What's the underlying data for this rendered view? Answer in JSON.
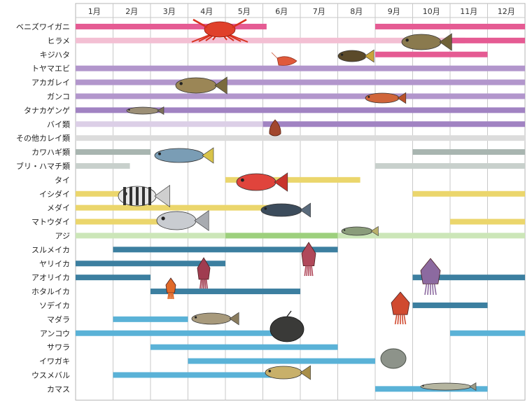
{
  "months": [
    "1月",
    "2月",
    "3月",
    "4月",
    "5月",
    "6月",
    "7月",
    "8月",
    "9月",
    "10月",
    "11月",
    "12月"
  ],
  "colors": {
    "pink": "#e55b93",
    "pink_light": "#f3bfd3",
    "purple": "#b296cc",
    "purple_dark": "#a183c2",
    "purple_light": "#dccfe7",
    "gray_pale": "#dcdcdc",
    "gray_green": "#a8b5b0",
    "gray_green_light": "#c8d0cc",
    "yellow": "#ebd66c",
    "green_light": "#cce6b8",
    "green": "#9dd07d",
    "teal_dark": "#3c7fa0",
    "sky": "#5ab2d7"
  },
  "species": [
    {
      "name": "ベニズワイガニ",
      "bars": [
        {
          "from": 1,
          "to": 5.1,
          "color": "pink"
        },
        {
          "from": 9,
          "to": 12,
          "color": "pink"
        }
      ]
    },
    {
      "name": "ヒラメ",
      "bars": [
        {
          "from": 1,
          "to": 10.4,
          "color": "pink_light"
        },
        {
          "from": 11,
          "to": 12,
          "color": "pink"
        }
      ]
    },
    {
      "name": "キジハタ",
      "bars": [
        {
          "from": 9,
          "to": 11,
          "color": "pink"
        }
      ]
    },
    {
      "name": "トヤマエビ",
      "bars": [
        {
          "from": 1,
          "to": 12,
          "color": "purple"
        }
      ]
    },
    {
      "name": "アカガレイ",
      "bars": [
        {
          "from": 1,
          "to": 12,
          "color": "purple"
        }
      ]
    },
    {
      "name": "ガンコ",
      "bars": [
        {
          "from": 1,
          "to": 12,
          "color": "purple"
        }
      ]
    },
    {
      "name": "タナカゲンゲ",
      "bars": [
        {
          "from": 1,
          "to": 12,
          "color": "purple_dark"
        }
      ]
    },
    {
      "name": "バイ類",
      "bars": [
        {
          "from": 1,
          "to": 5.1,
          "color": "purple_light"
        },
        {
          "from": 6,
          "to": 12,
          "color": "purple_dark"
        }
      ]
    },
    {
      "name": "その他カレイ類",
      "bars": [
        {
          "from": 1,
          "to": 12,
          "color": "gray_pale"
        }
      ]
    },
    {
      "name": "カワハギ類",
      "bars": [
        {
          "from": 1,
          "to": 2,
          "color": "gray_green"
        },
        {
          "from": 10,
          "to": 12,
          "color": "gray_green"
        }
      ]
    },
    {
      "name": "ブリ・ハマチ類",
      "bars": [
        {
          "from": 1,
          "to": 1.45,
          "color": "gray_green_light"
        },
        {
          "from": 9,
          "to": 12,
          "color": "gray_green_light"
        }
      ]
    },
    {
      "name": "タイ",
      "bars": [
        {
          "from": 5,
          "to": 7.6,
          "color": "yellow"
        }
      ]
    },
    {
      "name": "イシダイ",
      "bars": [
        {
          "from": 1,
          "to": 1.8,
          "color": "yellow"
        },
        {
          "from": 10,
          "to": 12,
          "color": "yellow"
        }
      ]
    },
    {
      "name": "メダイ",
      "bars": [
        {
          "from": 1,
          "to": 5.6,
          "color": "yellow"
        }
      ]
    },
    {
      "name": "マトウダイ",
      "bars": [
        {
          "from": 1,
          "to": 2.8,
          "color": "yellow"
        },
        {
          "from": 11,
          "to": 12,
          "color": "yellow"
        }
      ]
    },
    {
      "name": "アジ",
      "bars": [
        {
          "from": 1,
          "to": 12,
          "color": "green_light"
        },
        {
          "from": 5,
          "to": 7,
          "color": "green"
        }
      ]
    },
    {
      "name": "スルメイカ",
      "bars": [
        {
          "from": 2,
          "to": 7,
          "color": "teal_dark"
        }
      ]
    },
    {
      "name": "ヤリイカ",
      "bars": [
        {
          "from": 1,
          "to": 4,
          "color": "teal_dark"
        }
      ]
    },
    {
      "name": "アオリイカ",
      "bars": [
        {
          "from": 1,
          "to": 2,
          "color": "teal_dark"
        },
        {
          "from": 10,
          "to": 12,
          "color": "teal_dark"
        }
      ]
    },
    {
      "name": "ホタルイカ",
      "bars": [
        {
          "from": 3,
          "to": 6,
          "color": "teal_dark"
        }
      ]
    },
    {
      "name": "ソデイカ",
      "bars": [
        {
          "from": 10,
          "to": 11,
          "color": "teal_dark"
        }
      ]
    },
    {
      "name": "マダラ",
      "bars": [
        {
          "from": 2,
          "to": 3,
          "color": "sky"
        }
      ]
    },
    {
      "name": "アンコウ",
      "bars": [
        {
          "from": 1,
          "to": 5.4,
          "color": "sky"
        },
        {
          "from": 11,
          "to": 12,
          "color": "sky"
        }
      ]
    },
    {
      "name": "サワラ",
      "bars": [
        {
          "from": 3,
          "to": 7,
          "color": "sky"
        }
      ]
    },
    {
      "name": "イワガキ",
      "bars": [
        {
          "from": 4,
          "to": 8,
          "color": "sky"
        }
      ]
    },
    {
      "name": "ウスメバル",
      "bars": [
        {
          "from": 2,
          "to": 5.3,
          "color": "sky"
        }
      ]
    },
    {
      "name": "カマス",
      "bars": [
        {
          "from": 9,
          "to": 11,
          "color": "sky"
        }
      ]
    }
  ],
  "illustrations": [
    "crab-illustration",
    "flounder-illustration",
    "rockfish-illustration",
    "shrimp-illustration",
    "flatfish-illustration",
    "redfish-illustration",
    "eelpout-illustration",
    "whelk-illustration",
    "yellowtail-illustration",
    "red-snapper-illustration",
    "striped-beakperch-illustration",
    "filefish-illustration",
    "medai-illustration",
    "horse-mackerel-illustration",
    "flying-squid-illustration",
    "spear-squid-illustration",
    "bigfin-squid-illustration",
    "firefly-squid-illustration",
    "diamond-squid-illustration",
    "cod-illustration",
    "anglerfish-illustration",
    "oyster-illustration",
    "rockfish-small-illustration",
    "barracuda-illustration"
  ]
}
